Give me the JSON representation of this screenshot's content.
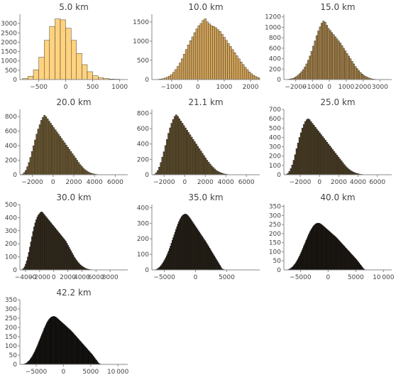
{
  "chart_data": [
    {
      "type": "bar",
      "title": "5.0 km",
      "color": "#ffd27f",
      "ylim": [
        0,
        3500
      ],
      "xlim": [
        -850,
        1150
      ],
      "xticks": [
        -500,
        0,
        500,
        1000
      ],
      "xtick_labels": [
        "−500",
        "0",
        "500",
        "1000"
      ],
      "yticks": [
        500,
        1000,
        1500,
        2000,
        2500,
        3000
      ],
      "ytick_labels": [
        "500",
        "1000",
        "1500",
        "2000",
        "2500",
        "3000"
      ],
      "bins": {
        "start": -800,
        "width": 100,
        "counts": [
          60,
          180,
          520,
          1200,
          2100,
          2850,
          3250,
          3200,
          2750,
          2100,
          1400,
          800,
          420,
          200,
          100,
          60,
          30,
          20
        ]
      }
    },
    {
      "type": "bar",
      "title": "10.0 km",
      "color": "#d4a55a",
      "ylim": [
        0,
        1700
      ],
      "xlim": [
        -1750,
        2350
      ],
      "xticks": [
        -1000,
        0,
        1000,
        2000
      ],
      "xtick_labels": [
        "−1000",
        "0",
        "1000",
        "2000"
      ],
      "yticks": [
        500,
        1000,
        1500
      ],
      "ytick_labels": [
        "500",
        "1000",
        "1500"
      ],
      "bins": {
        "start": -1600,
        "width": 80,
        "counts": [
          5,
          10,
          15,
          25,
          40,
          60,
          90,
          130,
          190,
          260,
          340,
          430,
          540,
          660,
          780,
          900,
          1010,
          1110,
          1220,
          1320,
          1400,
          1460,
          1540,
          1580,
          1500,
          1450,
          1400,
          1380,
          1350,
          1300,
          1250,
          1180,
          1100,
          1020,
          940,
          860,
          780,
          700,
          620,
          540,
          460,
          390,
          320,
          260,
          200,
          150,
          110,
          80,
          55,
          40,
          25,
          15,
          10,
          5
        ]
      }
    },
    {
      "type": "bar",
      "title": "15.0 km",
      "color": "#a6824a",
      "ylim": [
        0,
        1250
      ],
      "xlim": [
        -2700,
        3700
      ],
      "xticks": [
        -2000,
        -1000,
        0,
        1000,
        2000,
        3000
      ],
      "xtick_labels": [
        "−2000",
        "−1000",
        "0",
        "1000",
        "2000",
        "3000"
      ],
      "yticks": [
        200,
        400,
        600,
        800,
        1000,
        1200
      ],
      "ytick_labels": [
        "200",
        "400",
        "600",
        "800",
        "1000",
        "1200"
      ],
      "bins": {
        "start": -2500,
        "width": 100,
        "counts": [
          5,
          10,
          15,
          25,
          40,
          60,
          85,
          115,
          150,
          190,
          240,
          300,
          370,
          450,
          540,
          640,
          740,
          840,
          930,
          1010,
          1080,
          1120,
          1100,
          1040,
          980,
          940,
          900,
          860,
          820,
          780,
          740,
          700,
          650,
          600,
          550,
          500,
          450,
          400,
          350,
          300,
          250,
          210,
          170,
          135,
          105,
          80,
          60,
          45,
          30,
          20,
          12,
          8,
          5
        ]
      }
    },
    {
      "type": "bar",
      "title": "20.0 km",
      "color": "#6e5a32",
      "ylim": [
        0,
        900
      ],
      "xlim": [
        -3200,
        7200
      ],
      "xticks": [
        -2000,
        0,
        2000,
        4000,
        6000
      ],
      "xtick_labels": [
        "−2000",
        "0",
        "2000",
        "4000",
        "6000"
      ],
      "yticks": [
        200,
        400,
        600,
        800
      ],
      "ytick_labels": [
        "200",
        "400",
        "600",
        "800"
      ],
      "bins": {
        "start": -3000,
        "width": 150,
        "counts": [
          10,
          30,
          60,
          110,
          170,
          240,
          320,
          400,
          480,
          560,
          630,
          690,
          750,
          790,
          820,
          800,
          770,
          740,
          710,
          680,
          650,
          620,
          590,
          560,
          530,
          500,
          470,
          440,
          410,
          380,
          350,
          320,
          290,
          260,
          230,
          200,
          170,
          140,
          115,
          90,
          70,
          55,
          40,
          30,
          20,
          15,
          10,
          6,
          4,
          3,
          2,
          1,
          1,
          1,
          0,
          0,
          0,
          0,
          0,
          0,
          0,
          0,
          0,
          0,
          0,
          0,
          0,
          0,
          0
        ]
      }
    },
    {
      "type": "bar",
      "title": "21.1 km",
      "color": "#5e4d2b",
      "ylim": [
        0,
        850
      ],
      "xlim": [
        -3200,
        7300
      ],
      "xticks": [
        -2000,
        0,
        2000,
        4000,
        6000
      ],
      "xtick_labels": [
        "−2000",
        "0",
        "2000",
        "4000",
        "6000"
      ],
      "yticks": [
        200,
        400,
        600,
        800
      ],
      "ytick_labels": [
        "200",
        "400",
        "600",
        "800"
      ],
      "bins": {
        "start": -3000,
        "width": 150,
        "counts": [
          8,
          25,
          55,
          100,
          160,
          230,
          300,
          380,
          460,
          540,
          610,
          670,
          720,
          760,
          780,
          760,
          730,
          700,
          670,
          640,
          610,
          580,
          550,
          520,
          490,
          460,
          430,
          400,
          370,
          340,
          310,
          280,
          250,
          220,
          190,
          165,
          140,
          115,
          95,
          75,
          58,
          45,
          34,
          25,
          18,
          12,
          8,
          5,
          3,
          2,
          1,
          1,
          1,
          0,
          0,
          0,
          0,
          0,
          0,
          0,
          0,
          0,
          0,
          0,
          0,
          0,
          0,
          0,
          0
        ]
      }
    },
    {
      "type": "bar",
      "title": "25.0 km",
      "color": "#4a3d23",
      "ylim": [
        0,
        700
      ],
      "xlim": [
        -3700,
        7500
      ],
      "xticks": [
        -2000,
        0,
        2000,
        4000,
        6000
      ],
      "xtick_labels": [
        "−2000",
        "0",
        "2000",
        "4000",
        "6000"
      ],
      "yticks": [
        100,
        200,
        300,
        400,
        500,
        600,
        700
      ],
      "ytick_labels": [
        "100",
        "200",
        "300",
        "400",
        "500",
        "600",
        "700"
      ],
      "bins": {
        "start": -3500,
        "width": 150,
        "counts": [
          5,
          15,
          35,
          65,
          105,
          155,
          215,
          280,
          340,
          400,
          450,
          500,
          540,
          570,
          590,
          600,
          590,
          570,
          550,
          530,
          510,
          490,
          470,
          450,
          430,
          410,
          390,
          370,
          350,
          330,
          310,
          290,
          270,
          250,
          230,
          210,
          190,
          170,
          150,
          130,
          110,
          92,
          76,
          62,
          50,
          40,
          31,
          24,
          18,
          13,
          9,
          6,
          4,
          3,
          2,
          1,
          1,
          0,
          0,
          0,
          0,
          0,
          0,
          0,
          0,
          0,
          0,
          0,
          0,
          0,
          0,
          0,
          0,
          0,
          0
        ]
      }
    },
    {
      "type": "bar",
      "title": "30.0 km",
      "color": "#33291a",
      "ylim": [
        0,
        500
      ],
      "xlim": [
        -4800,
        10500
      ],
      "xticks": [
        -4000,
        -2000,
        0,
        2000,
        4000,
        6000,
        8000
      ],
      "xtick_labels": [
        "−4000",
        "−2000",
        "0",
        "2000",
        "4000",
        "6000",
        "8000"
      ],
      "yticks": [
        100,
        200,
        300,
        400,
        500
      ],
      "ytick_labels": [
        "100",
        "200",
        "300",
        "400",
        "500"
      ],
      "bins": {
        "start": -4500,
        "width": 150,
        "counts": [
          5,
          12,
          25,
          45,
          70,
          100,
          135,
          175,
          215,
          255,
          295,
          330,
          360,
          385,
          405,
          420,
          430,
          440,
          445,
          440,
          430,
          420,
          410,
          400,
          390,
          380,
          370,
          360,
          350,
          340,
          330,
          320,
          310,
          300,
          290,
          280,
          270,
          260,
          250,
          240,
          230,
          220,
          205,
          190,
          175,
          160,
          145,
          130,
          115,
          100,
          88,
          76,
          65,
          55,
          46,
          38,
          31,
          25,
          20,
          15,
          11,
          8,
          6,
          4,
          3,
          2,
          1,
          1,
          1,
          0,
          0,
          0,
          0,
          0,
          0,
          0,
          0,
          0,
          0,
          0,
          0,
          0,
          0,
          0,
          0,
          0,
          0,
          0,
          0,
          0,
          0,
          0,
          0,
          0,
          0,
          0,
          0,
          0,
          0,
          0,
          0,
          0
        ]
      }
    },
    {
      "type": "bar",
      "title": "35.0 km",
      "color": "#221b10",
      "ylim": [
        0,
        420
      ],
      "xlim": [
        -7000,
        10300
      ],
      "xticks": [
        -5000,
        0,
        5000
      ],
      "xtick_labels": [
        "−5000",
        "0",
        "5000"
      ],
      "yticks": [
        100,
        200,
        300,
        400
      ],
      "ytick_labels": [
        "100",
        "200",
        "300",
        "400"
      ],
      "bins": {
        "start": -6500,
        "width": 150,
        "counts": [
          2,
          4,
          7,
          11,
          16,
          22,
          29,
          37,
          46,
          56,
          67,
          79,
          92,
          106,
          121,
          137,
          154,
          172,
          190,
          208,
          226,
          244,
          262,
          279,
          295,
          310,
          323,
          334,
          343,
          350,
          355,
          358,
          360,
          358,
          354,
          348,
          341,
          333,
          324,
          315,
          306,
          297,
          288,
          279,
          270,
          261,
          252,
          243,
          234,
          225,
          216,
          207,
          198,
          189,
          180,
          170,
          160,
          150,
          140,
          130,
          120,
          110,
          100,
          90,
          80,
          70,
          60,
          50,
          40,
          30,
          20,
          10,
          5,
          3,
          2,
          1,
          1,
          0,
          0,
          0,
          0,
          0,
          0,
          0,
          0,
          0,
          0,
          0,
          0,
          0,
          0,
          0,
          0,
          0,
          0,
          0,
          0,
          0,
          0,
          0,
          0,
          0,
          0,
          0,
          0,
          0,
          0,
          0,
          0,
          0,
          0,
          0,
          0,
          0,
          0,
          0
        ]
      }
    },
    {
      "type": "bar",
      "title": "40.0 km",
      "color": "#150f08",
      "ylim": [
        0,
        360
      ],
      "xlim": [
        -8000,
        11500
      ],
      "xticks": [
        -5000,
        0,
        5000,
        10000
      ],
      "xtick_labels": [
        "−5000",
        "0",
        "5000",
        "10 000"
      ],
      "yticks": [
        50,
        100,
        150,
        200,
        250,
        300,
        350
      ],
      "ytick_labels": [
        "50",
        "100",
        "150",
        "200",
        "250",
        "300",
        "350"
      ],
      "bins": {
        "start": -7500,
        "width": 150,
        "counts": [
          1,
          2,
          3,
          5,
          8,
          11,
          15,
          19,
          24,
          30,
          36,
          43,
          51,
          59,
          68,
          77,
          87,
          97,
          108,
          119,
          130,
          141,
          152,
          163,
          174,
          185,
          195,
          205,
          214,
          222,
          230,
          237,
          243,
          248,
          252,
          255,
          257,
          258,
          258,
          257,
          255,
          252,
          249,
          245,
          241,
          237,
          233,
          229,
          225,
          221,
          217,
          213,
          209,
          205,
          201,
          197,
          193,
          189,
          185,
          181,
          176,
          171,
          166,
          161,
          156,
          151,
          146,
          141,
          136,
          131,
          126,
          121,
          116,
          111,
          106,
          101,
          96,
          91,
          86,
          81,
          76,
          71,
          66,
          61,
          56,
          50,
          44,
          38,
          32,
          26,
          20,
          14,
          8,
          4,
          2,
          1,
          0,
          0,
          0,
          0,
          0,
          0,
          0,
          0,
          0,
          0,
          0,
          0,
          0,
          0,
          0,
          0,
          0,
          0,
          0,
          0,
          0,
          0,
          0,
          0,
          0,
          0,
          0,
          0,
          0,
          0,
          0,
          0,
          0,
          0
        ]
      }
    },
    {
      "type": "bar",
      "title": "42.2 km",
      "color": "#0b0804",
      "ylim": [
        0,
        350
      ],
      "xlim": [
        -8000,
        11800
      ],
      "xticks": [
        -5000,
        0,
        5000,
        10000
      ],
      "xtick_labels": [
        "−5000",
        "0",
        "5000",
        "10 000"
      ],
      "yticks": [
        50,
        100,
        150,
        200,
        250,
        300,
        350
      ],
      "ytick_labels": [
        "50",
        "100",
        "150",
        "200",
        "250",
        "300",
        "350"
      ],
      "bins": {
        "start": -7500,
        "width": 150,
        "counts": [
          1,
          2,
          3,
          5,
          7,
          10,
          14,
          18,
          23,
          29,
          35,
          42,
          50,
          58,
          67,
          76,
          86,
          96,
          107,
          118,
          129,
          140,
          151,
          162,
          173,
          184,
          195,
          205,
          215,
          224,
          232,
          239,
          245,
          250,
          254,
          257,
          259,
          260,
          260,
          259,
          257,
          254,
          250,
          246,
          242,
          238,
          234,
          230,
          226,
          222,
          218,
          214,
          210,
          206,
          202,
          198,
          194,
          190,
          186,
          182,
          177,
          172,
          167,
          162,
          157,
          152,
          147,
          142,
          137,
          132,
          127,
          122,
          117,
          112,
          107,
          102,
          97,
          92,
          87,
          82,
          77,
          72,
          67,
          62,
          57,
          52,
          46,
          40,
          34,
          28,
          22,
          16,
          10,
          6,
          3,
          2,
          1,
          1,
          0,
          0,
          0,
          0,
          0,
          0,
          0,
          0,
          0,
          0,
          0,
          0,
          0,
          0,
          0,
          0,
          0,
          0,
          0,
          0,
          0,
          0,
          0,
          0,
          0,
          0,
          0,
          0,
          0,
          0,
          0
        ]
      }
    }
  ]
}
